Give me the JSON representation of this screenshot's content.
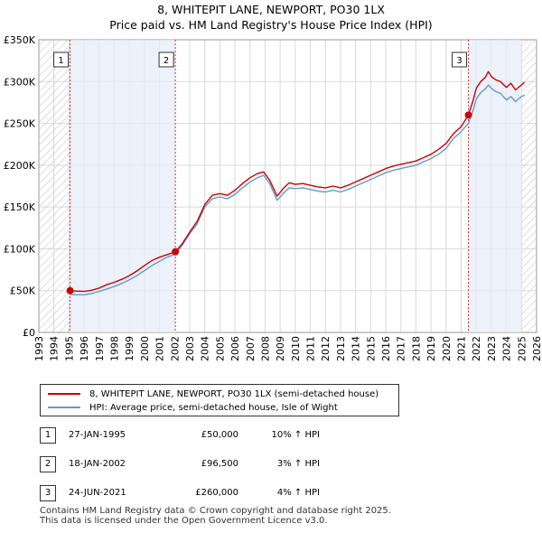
{
  "chart_data": {
    "type": "line",
    "title": "8, WHITEPIT LANE, NEWPORT, PO30 1LX",
    "subtitle": "Price paid vs. HM Land Registry's House Price Index (HPI)",
    "xlabel": "",
    "ylabel": "",
    "xlim": [
      1993,
      2026
    ],
    "ylim": [
      0,
      350000
    ],
    "y_ticks": [
      0,
      50000,
      100000,
      150000,
      200000,
      250000,
      300000,
      350000
    ],
    "y_tick_labels": [
      "£0",
      "£50K",
      "£100K",
      "£150K",
      "£200K",
      "£250K",
      "£300K",
      "£350K"
    ],
    "x_ticks": [
      1993,
      1994,
      1995,
      1996,
      1997,
      1998,
      1999,
      2000,
      2001,
      2002,
      2003,
      2004,
      2005,
      2006,
      2007,
      2008,
      2009,
      2010,
      2011,
      2012,
      2013,
      2014,
      2015,
      2016,
      2017,
      2018,
      2019,
      2020,
      2021,
      2022,
      2023,
      2024,
      2025,
      2026
    ],
    "grid": true,
    "hatched_regions": [
      [
        1993,
        1995.07
      ],
      [
        2025.0,
        2026
      ]
    ],
    "shaded_regions": [
      [
        1995.07,
        2002.05
      ],
      [
        2021.48,
        2025.0
      ]
    ],
    "series": [
      {
        "name": "8, WHITEPIT LANE, NEWPORT, PO30 1LX (semi-detached house)",
        "color": "#cc0000",
        "x": [
          1995.07,
          1995.5,
          1996,
          1996.5,
          1997,
          1997.5,
          1998,
          1998.5,
          1999,
          1999.5,
          2000,
          2000.5,
          2001,
          2001.5,
          2002.05,
          2002.5,
          2003,
          2003.5,
          2004,
          2004.5,
          2005,
          2005.5,
          2006,
          2006.5,
          2007,
          2007.5,
          2007.9,
          2008.3,
          2008.8,
          2009.2,
          2009.6,
          2010,
          2010.5,
          2011,
          2011.5,
          2012,
          2012.5,
          2013,
          2013.5,
          2014,
          2014.5,
          2015,
          2015.5,
          2016,
          2016.5,
          2017,
          2017.5,
          2018,
          2018.5,
          2019,
          2019.5,
          2020,
          2020.5,
          2021,
          2021.48,
          2021.8,
          2022,
          2022.3,
          2022.6,
          2022.8,
          2023,
          2023.3,
          2023.6,
          2024,
          2024.3,
          2024.6,
          2025,
          2025.2
        ],
        "values": [
          50000,
          49500,
          49000,
          50500,
          53000,
          57000,
          60000,
          63500,
          68000,
          73500,
          80000,
          86000,
          90000,
          93000,
          96500,
          106000,
          120000,
          133000,
          153000,
          164000,
          166000,
          164000,
          170000,
          178000,
          185000,
          190000,
          192000,
          182000,
          163000,
          172000,
          179000,
          177000,
          178000,
          176000,
          174000,
          173000,
          175000,
          173000,
          176000,
          180000,
          184000,
          188000,
          192000,
          196000,
          199000,
          201000,
          203000,
          205000,
          209000,
          213000,
          219000,
          226000,
          238000,
          246000,
          260000,
          278000,
          292000,
          300000,
          305000,
          312000,
          306000,
          302000,
          300000,
          293000,
          298000,
          290000,
          296000,
          299000
        ]
      },
      {
        "name": "HPI: Average price, semi-detached house, Isle of Wight",
        "color": "#6699cc",
        "x": [
          1995.07,
          1995.5,
          1996,
          1996.5,
          1997,
          1997.5,
          1998,
          1998.5,
          1999,
          1999.5,
          2000,
          2000.5,
          2001,
          2001.5,
          2002.05,
          2002.5,
          2003,
          2003.5,
          2004,
          2004.5,
          2005,
          2005.5,
          2006,
          2006.5,
          2007,
          2007.5,
          2007.9,
          2008.3,
          2008.8,
          2009.2,
          2009.6,
          2010,
          2010.5,
          2011,
          2011.5,
          2012,
          2012.5,
          2013,
          2013.5,
          2014,
          2014.5,
          2015,
          2015.5,
          2016,
          2016.5,
          2017,
          2017.5,
          2018,
          2018.5,
          2019,
          2019.5,
          2020,
          2020.5,
          2021,
          2021.48,
          2021.8,
          2022,
          2022.3,
          2022.6,
          2022.8,
          2023,
          2023.3,
          2023.6,
          2024,
          2024.3,
          2024.6,
          2025,
          2025.2
        ],
        "values": [
          45500,
          45000,
          45000,
          46500,
          49000,
          52000,
          55000,
          58500,
          63000,
          68000,
          74000,
          80000,
          85000,
          90000,
          93500,
          104000,
          118000,
          130000,
          150000,
          160000,
          162000,
          160000,
          165000,
          173000,
          180000,
          185000,
          188000,
          178000,
          158000,
          166000,
          173000,
          172000,
          173000,
          171000,
          169000,
          168000,
          170000,
          168000,
          171000,
          175000,
          179000,
          183000,
          187000,
          191000,
          194000,
          196000,
          198000,
          200000,
          204000,
          208000,
          213000,
          220000,
          232000,
          240000,
          250000,
          266000,
          279000,
          287000,
          291000,
          296000,
          292000,
          288000,
          286000,
          278000,
          282000,
          276000,
          282000,
          284000
        ]
      }
    ],
    "markers": [
      {
        "label": "1",
        "x": 1995.07,
        "value": 50000
      },
      {
        "label": "2",
        "x": 2002.05,
        "value": 96500
      },
      {
        "label": "3",
        "x": 2021.48,
        "value": 260000
      }
    ]
  },
  "legend": {
    "items": [
      {
        "label": "8, WHITEPIT LANE, NEWPORT, PO30 1LX (semi-detached house)",
        "color": "#cc0000"
      },
      {
        "label": "HPI: Average price, semi-detached house, Isle of Wight",
        "color": "#6699cc"
      }
    ]
  },
  "sales": [
    {
      "num": "1",
      "date": "27-JAN-1995",
      "price": "£50,000",
      "hpi": "10% ↑ HPI"
    },
    {
      "num": "2",
      "date": "18-JAN-2002",
      "price": "£96,500",
      "hpi": "3% ↑ HPI"
    },
    {
      "num": "3",
      "date": "24-JUN-2021",
      "price": "£260,000",
      "hpi": "4% ↑ HPI"
    }
  ],
  "footer": {
    "line1": "Contains HM Land Registry data © Crown copyright and database right 2025.",
    "line2": "This data is licensed under the Open Government Licence v3.0."
  }
}
